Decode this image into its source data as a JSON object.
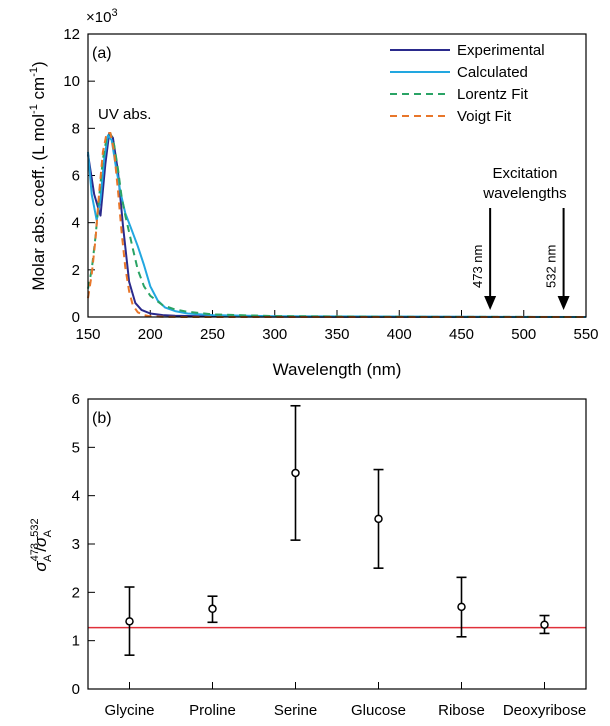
{
  "chart_data": [
    {
      "type": "line",
      "panel_label": "(a)",
      "xlabel": "Wavelength (nm)",
      "ylabel_main": "Molar abs. coeff. (L mol",
      "ylabel_sup1": "-1",
      "ylabel_mid": " cm",
      "ylabel_sup2": "-1",
      "ylabel_end": ")",
      "multiplier_base": "×10",
      "multiplier_exp": "3",
      "xlim": [
        150,
        550
      ],
      "ylim": [
        0,
        12000
      ],
      "x_ticks": [
        150,
        200,
        250,
        300,
        350,
        400,
        450,
        500,
        550
      ],
      "y_ticks": [
        0,
        2000,
        4000,
        6000,
        8000,
        10000,
        12000
      ],
      "y_tick_labels": [
        "0",
        "2",
        "4",
        "6",
        "8",
        "10",
        "12"
      ],
      "series": [
        {
          "name": "Experimental",
          "color": "#2a2a8c",
          "dash": "none",
          "x": [
            150,
            155,
            160,
            164,
            167,
            170,
            174,
            178,
            183,
            188,
            193,
            200,
            210,
            220,
            240,
            280,
            350,
            550
          ],
          "y": [
            6900,
            5200,
            4300,
            6500,
            7800,
            7600,
            6200,
            3900,
            1500,
            600,
            300,
            150,
            80,
            50,
            30,
            15,
            5,
            0
          ]
        },
        {
          "name": "Calculated",
          "color": "#22a7e0",
          "dash": "none",
          "x": [
            150,
            153,
            157,
            160,
            163,
            166,
            169,
            172,
            176,
            180,
            185,
            190,
            195,
            200,
            206,
            212,
            220,
            230,
            250,
            300,
            550
          ],
          "y": [
            7000,
            5200,
            4100,
            5000,
            6700,
            7700,
            7500,
            6500,
            5300,
            4400,
            3700,
            3000,
            2200,
            1300,
            700,
            400,
            250,
            150,
            80,
            30,
            0
          ]
        },
        {
          "name": "Lorentz Fit",
          "color": "#2aa365",
          "dash": "7,5",
          "x": [
            150,
            153,
            156,
            159,
            162,
            165,
            168,
            171,
            174,
            177,
            180,
            183,
            186,
            190,
            195,
            200,
            210,
            220,
            230,
            250,
            300,
            350,
            400,
            550
          ],
          "y": [
            1200,
            2000,
            3400,
            5100,
            6700,
            7600,
            7800,
            7300,
            6300,
            5100,
            4300,
            3600,
            2900,
            2000,
            1300,
            900,
            500,
            320,
            220,
            110,
            40,
            20,
            10,
            0
          ]
        },
        {
          "name": "Voigt Fit",
          "color": "#e8762a",
          "dash": "7,5",
          "x": [
            150,
            153,
            156,
            159,
            162,
            165,
            168,
            171,
            174,
            177,
            180,
            183,
            186,
            190,
            195,
            200,
            210,
            230,
            550
          ],
          "y": [
            800,
            1800,
            3300,
            5300,
            7000,
            7800,
            7800,
            7000,
            5400,
            3600,
            2100,
            1100,
            500,
            200,
            80,
            30,
            10,
            0,
            0
          ]
        }
      ],
      "annotations": {
        "uv_label": "UV abs.",
        "excitation_line1": "Excitation",
        "excitation_line2": "wavelengths",
        "arrows": [
          {
            "x": 473,
            "label": "473 nm"
          },
          {
            "x": 532,
            "label": "532 nm"
          }
        ]
      },
      "legend_placement": "top-right"
    },
    {
      "type": "scatter",
      "panel_label": "(b)",
      "ylabel_symbol": "σ",
      "ylabel_sub": "A",
      "ylabel_sup_num": "473",
      "ylabel_sup_den": "532",
      "categories": [
        "Glycine",
        "Proline",
        "Serine",
        "Glucose",
        "Ribose",
        "Deoxyribose"
      ],
      "values": [
        1.4,
        1.66,
        4.47,
        3.52,
        1.7,
        1.33
      ],
      "error_low": [
        0.7,
        1.38,
        3.08,
        2.5,
        1.08,
        1.15
      ],
      "error_high": [
        2.11,
        1.92,
        5.86,
        4.54,
        2.31,
        1.52
      ],
      "ylim": [
        0,
        6
      ],
      "y_ticks": [
        0,
        1,
        2,
        3,
        4,
        5,
        6
      ],
      "reference_line": {
        "y": 1.27,
        "color": "#e0303a"
      }
    }
  ]
}
